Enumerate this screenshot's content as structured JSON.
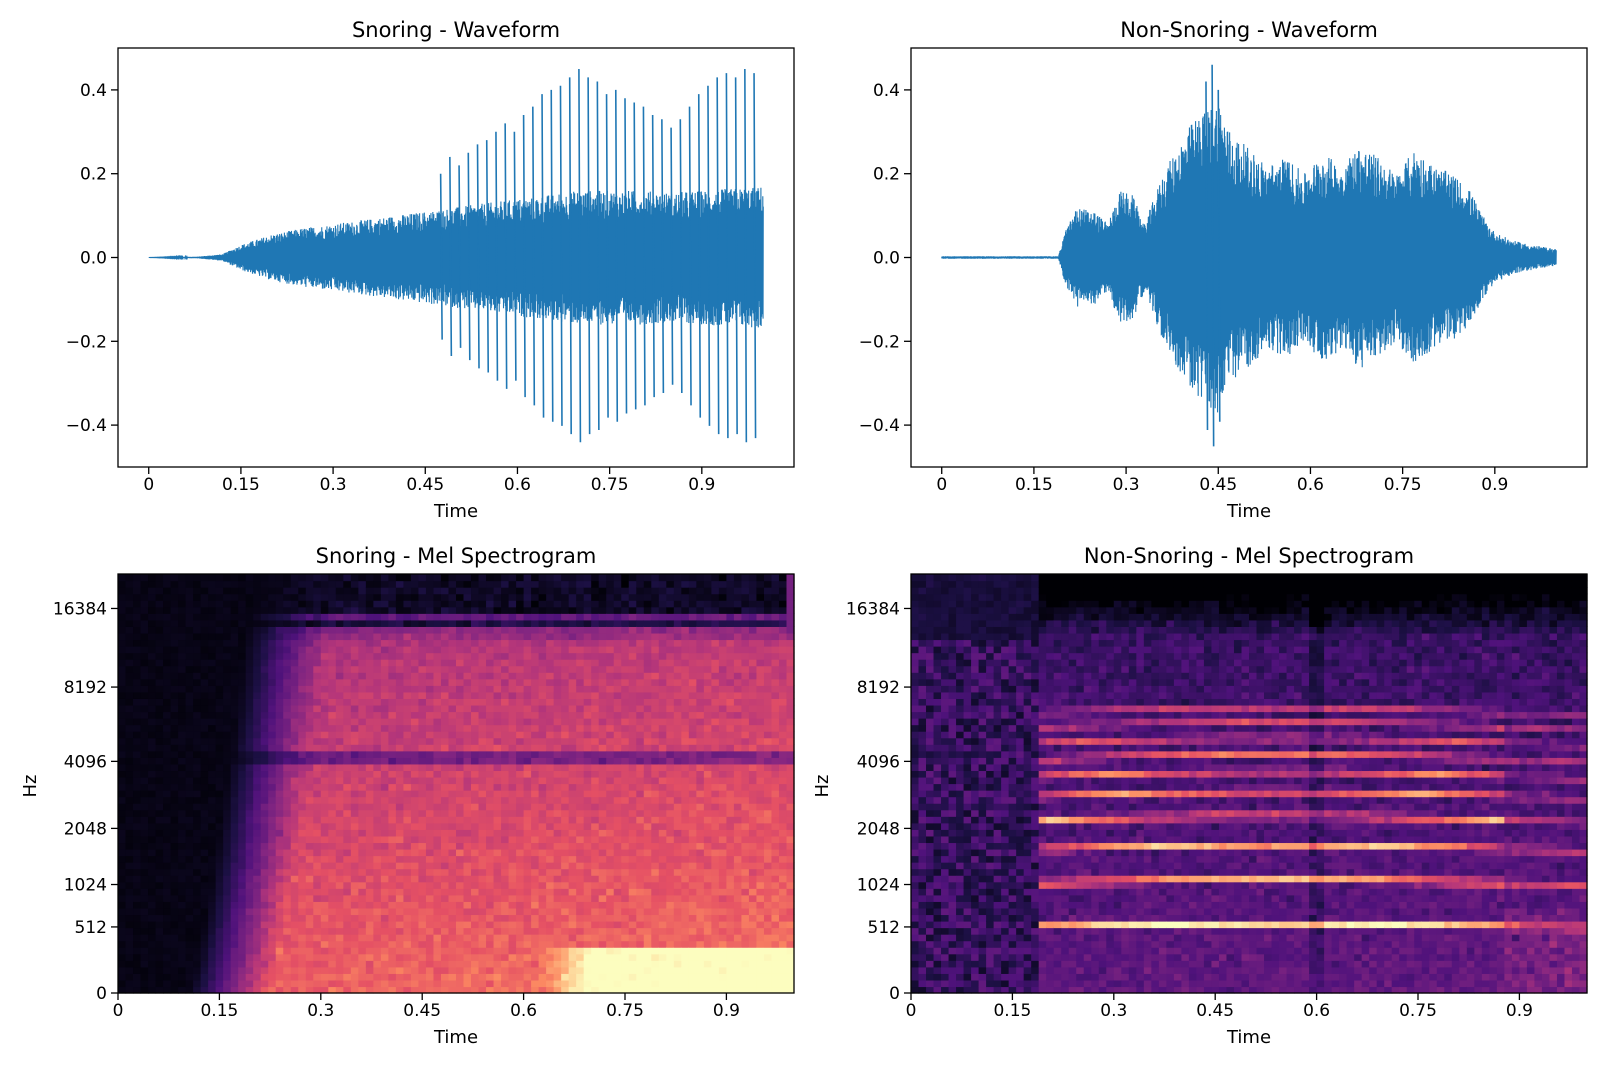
{
  "chart_data": [
    {
      "type": "line",
      "title": "Snoring - Waveform",
      "xlabel": "Time",
      "ylabel": "",
      "xlim": [
        -0.05,
        1.05
      ],
      "ylim": [
        -0.5,
        0.5
      ],
      "xticks": [
        0,
        0.15,
        0.3,
        0.45,
        0.6,
        0.75,
        0.9
      ],
      "xtick_labels": [
        "0",
        "0.15",
        "0.3",
        "0.45",
        "0.6",
        "0.75",
        "0.9"
      ],
      "yticks": [
        0.4,
        0.2,
        0.0,
        -0.2,
        -0.4
      ],
      "ytick_labels": [
        "0.4",
        "0.2",
        "0.0",
        "−0.2",
        "−0.4"
      ],
      "duration": 1.0,
      "envelope": {
        "t": [
          0,
          0.08,
          0.12,
          0.15,
          0.2,
          0.25,
          0.3,
          0.35,
          0.4,
          0.45,
          0.5,
          0.55,
          0.6,
          0.65,
          0.7,
          0.75,
          0.8,
          0.85,
          0.9,
          0.95,
          1.0
        ],
        "amp": [
          0.0,
          0.002,
          0.008,
          0.03,
          0.055,
          0.07,
          0.08,
          0.09,
          0.1,
          0.11,
          0.12,
          0.13,
          0.14,
          0.15,
          0.16,
          0.16,
          0.16,
          0.155,
          0.16,
          0.165,
          0.17
        ]
      },
      "peaks": {
        "t": [
          0.475,
          0.49,
          0.505,
          0.52,
          0.535,
          0.55,
          0.565,
          0.58,
          0.595,
          0.61,
          0.625,
          0.64,
          0.655,
          0.67,
          0.685,
          0.7,
          0.715,
          0.73,
          0.745,
          0.76,
          0.775,
          0.79,
          0.805,
          0.82,
          0.835,
          0.85,
          0.865,
          0.88,
          0.895,
          0.91,
          0.925,
          0.94,
          0.955,
          0.97,
          0.985
        ],
        "amp": [
          0.2,
          0.24,
          0.22,
          0.25,
          0.27,
          0.28,
          0.3,
          0.32,
          0.3,
          0.34,
          0.36,
          0.39,
          0.4,
          0.41,
          0.43,
          0.45,
          0.43,
          0.42,
          0.39,
          0.4,
          0.38,
          0.37,
          0.36,
          0.34,
          0.33,
          0.31,
          0.33,
          0.36,
          0.39,
          0.41,
          0.43,
          0.44,
          0.43,
          0.45,
          0.44
        ]
      },
      "color": "#1f77b4"
    },
    {
      "type": "line",
      "title": "Non-Snoring - Waveform",
      "xlabel": "Time",
      "ylabel": "",
      "xlim": [
        -0.05,
        1.05
      ],
      "ylim": [
        -0.5,
        0.5
      ],
      "xticks": [
        0,
        0.15,
        0.3,
        0.45,
        0.6,
        0.75,
        0.9
      ],
      "xtick_labels": [
        "0",
        "0.15",
        "0.3",
        "0.45",
        "0.6",
        "0.75",
        "0.9"
      ],
      "yticks": [
        0.4,
        0.2,
        0.0,
        -0.2,
        -0.4
      ],
      "ytick_labels": [
        "0.4",
        "0.2",
        "0.0",
        "−0.2",
        "−0.4"
      ],
      "duration": 1.0,
      "envelope": {
        "t": [
          0,
          0.19,
          0.2,
          0.22,
          0.25,
          0.27,
          0.29,
          0.31,
          0.33,
          0.36,
          0.39,
          0.41,
          0.43,
          0.45,
          0.47,
          0.5,
          0.53,
          0.56,
          0.59,
          0.62,
          0.65,
          0.68,
          0.71,
          0.74,
          0.77,
          0.8,
          0.83,
          0.86,
          0.88,
          0.9,
          0.93,
          0.96,
          1.0
        ],
        "amp": [
          0.003,
          0.003,
          0.06,
          0.12,
          0.11,
          0.08,
          0.16,
          0.15,
          0.08,
          0.2,
          0.28,
          0.33,
          0.35,
          0.38,
          0.3,
          0.26,
          0.22,
          0.24,
          0.2,
          0.25,
          0.22,
          0.27,
          0.24,
          0.2,
          0.26,
          0.22,
          0.2,
          0.16,
          0.1,
          0.06,
          0.04,
          0.03,
          0.02
        ]
      },
      "peaks": {
        "t": [
          0.43,
          0.44,
          0.45
        ],
        "amp": [
          0.42,
          0.46,
          0.4
        ]
      },
      "color": "#1f77b4"
    },
    {
      "type": "heatmap",
      "title": "Snoring - Mel Spectrogram",
      "xlabel": "Time",
      "ylabel": "Hz",
      "xlim": [
        0,
        1.0
      ],
      "xticks": [
        0,
        0.15,
        0.3,
        0.45,
        0.6,
        0.75,
        0.9
      ],
      "xtick_labels": [
        "0",
        "0.15",
        "0.3",
        "0.45",
        "0.6",
        "0.75",
        "0.9"
      ],
      "yticks_hz": [
        0,
        512,
        1024,
        2048,
        4096,
        8192,
        16384
      ],
      "ytick_labels": [
        "0",
        "512",
        "1024",
        "2048",
        "4096",
        "8192",
        "16384"
      ],
      "fmax_hz": 22050,
      "colormap": "magma",
      "onset_time": 0.14,
      "dark_bands_hz": [
        4300,
        14500
      ],
      "bright_low_band": {
        "t_start": 0.62,
        "t_end": 1.0,
        "f_max_hz": 300
      }
    },
    {
      "type": "heatmap",
      "title": "Non-Snoring - Mel Spectrogram",
      "xlabel": "Time",
      "ylabel": "Hz",
      "xlim": [
        0,
        1.0
      ],
      "xticks": [
        0,
        0.15,
        0.3,
        0.45,
        0.6,
        0.75,
        0.9
      ],
      "xtick_labels": [
        "0",
        "0.15",
        "0.3",
        "0.45",
        "0.6",
        "0.75",
        "0.9"
      ],
      "yticks_hz": [
        0,
        512,
        1024,
        2048,
        4096,
        8192,
        16384
      ],
      "ytick_labels": [
        "0",
        "512",
        "1024",
        "2048",
        "4096",
        "8192",
        "16384"
      ],
      "fmax_hz": 22050,
      "colormap": "magma",
      "onset_time": 0.19,
      "offset_time": 0.88,
      "harmonics_hz": [
        520,
        1050,
        1620,
        2250,
        2900,
        3550,
        4200,
        4900,
        5700,
        6500
      ]
    }
  ]
}
